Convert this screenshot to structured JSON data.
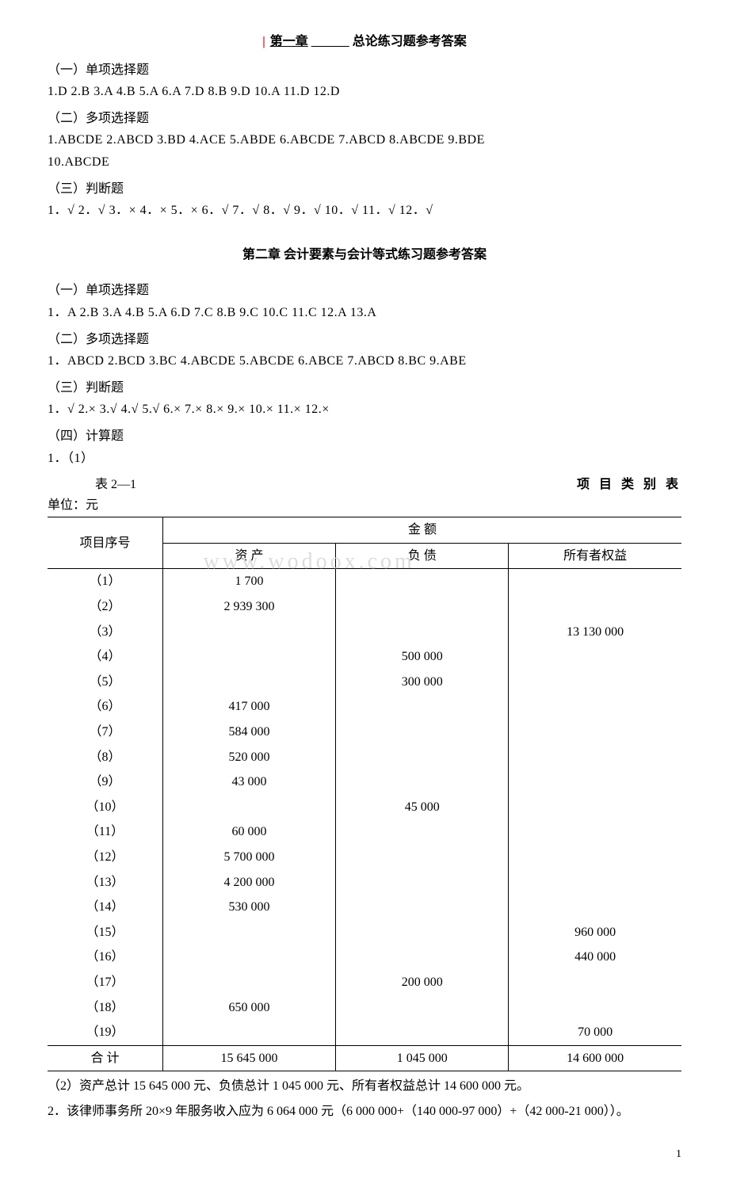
{
  "chapter1": {
    "title_part1": "第一章",
    "title_part2": "总论练习题参考答案",
    "single_choice_header": "（一）单项选择题",
    "single_choice_answers": "1.D   2.B   3.A   4.B   5.A   6.A   7.D   8.B   9.D   10.A   11.D   12.D",
    "multi_choice_header": "（二）多项选择题",
    "multi_choice_answers_1": "1.ABCDE   2.ABCD   3.BD   4.ACE   5.ABDE   6.ABCDE   7.ABCD   8.ABCDE   9.BDE",
    "multi_choice_answers_2": "10.ABCDE",
    "judge_header": "（三）判断题",
    "judge_answers": "1．√   2．√   3．×   4．×    5．×   6．√   7．√   8．√   9．√    10．√  11．√    12．√"
  },
  "chapter2": {
    "title": "第二章   会计要素与会计等式练习题参考答案",
    "single_choice_header": "（一）单项选择题",
    "single_choice_answers": "1．A   2.B   3.A   4.B   5.A   6.D   7.C   8.B   9.C 10.C   11.C   12.A   13.A",
    "multi_choice_header": "（二）多项选择题",
    "multi_choice_answers": "1．ABCD   2.BCD   3.BC   4.ABCDE   5.ABCDE   6.ABCE   7.ABCD   8.BC   9.ABE",
    "judge_header": "（三）判断题",
    "judge_answers": "1．√  2.×   3.√  4.√   5.√   6.×   7.×   8.×   9.×   10.×   11.×   12.×",
    "calc_header": "（四）计算题",
    "calc_1": "1．（1）",
    "table_label": "表  2—1",
    "table_title": "项 目 类 别 表",
    "unit": "单位：元"
  },
  "table": {
    "header_item": "项目序号",
    "header_amount": "金      额",
    "header_asset": "资    产",
    "header_liab": "负    债",
    "header_equity": "所有者权益",
    "rows": [
      {
        "num": "（1）",
        "asset": "1 700",
        "liab": "",
        "equity": ""
      },
      {
        "num": "（2）",
        "asset": "2 939 300",
        "liab": "",
        "equity": ""
      },
      {
        "num": "（3）",
        "asset": "",
        "liab": "",
        "equity": "13 130 000"
      },
      {
        "num": "（4）",
        "asset": "",
        "liab": "500 000",
        "equity": ""
      },
      {
        "num": "（5）",
        "asset": "",
        "liab": "300 000",
        "equity": ""
      },
      {
        "num": "（6）",
        "asset": "417 000",
        "liab": "",
        "equity": ""
      },
      {
        "num": "（7）",
        "asset": "584 000",
        "liab": "",
        "equity": ""
      },
      {
        "num": "（8）",
        "asset": "520 000",
        "liab": "",
        "equity": ""
      },
      {
        "num": "（9）",
        "asset": "43 000",
        "liab": "",
        "equity": ""
      },
      {
        "num": "（10）",
        "asset": "",
        "liab": "45 000",
        "equity": ""
      },
      {
        "num": "（11）",
        "asset": "60 000",
        "liab": "",
        "equity": ""
      },
      {
        "num": "（12）",
        "asset": "5 700 000",
        "liab": "",
        "equity": ""
      },
      {
        "num": "（13）",
        "asset": "4 200 000",
        "liab": "",
        "equity": ""
      },
      {
        "num": "（14）",
        "asset": "530 000",
        "liab": "",
        "equity": ""
      },
      {
        "num": "（15）",
        "asset": "",
        "liab": "",
        "equity": "960 000"
      },
      {
        "num": "（16）",
        "asset": "",
        "liab": "",
        "equity": "440 000"
      },
      {
        "num": "（17）",
        "asset": "",
        "liab": "200 000",
        "equity": ""
      },
      {
        "num": "（18）",
        "asset": "650 000",
        "liab": "",
        "equity": ""
      },
      {
        "num": "（19）",
        "asset": "",
        "liab": "",
        "equity": "70 000"
      }
    ],
    "total_label": "合  计",
    "total_asset": "15 645 000",
    "total_liab": "1 045 000",
    "total_equity": "14 600 000"
  },
  "footer": {
    "line1": "（2）资产总计 15 645 000 元、负债总计 1 045 000 元、所有者权益总计 14 600 000 元。",
    "line2": "2．该律师事务所 20×9 年服务收入应为 6 064 000 元（6 000 000+（140 000-97 000）+（42 000-21 000））。"
  },
  "watermark": "www.wodoox.com",
  "page_number": "1"
}
